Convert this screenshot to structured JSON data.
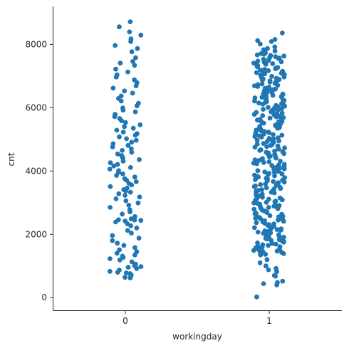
{
  "chart_data": {
    "type": "scatter",
    "title": "",
    "xlabel": "workingday",
    "ylabel": "cnt",
    "categories": [
      "0",
      "1"
    ],
    "ylim": [
      -400,
      9200
    ],
    "yticks": [
      0,
      2000,
      4000,
      6000,
      8000
    ],
    "grid": false,
    "color": "#1f77b4",
    "series": [
      {
        "category": "0",
        "values": [
          8714,
          8555,
          8395,
          8294,
          8173,
          8090,
          7965,
          7870,
          7767,
          7580,
          7460,
          7410,
          7338,
          7216,
          7130,
          7040,
          6970,
          6880,
          6790,
          6690,
          6620,
          6530,
          6460,
          6370,
          6290,
          6210,
          6140,
          6060,
          5990,
          5920,
          5870,
          5790,
          5720,
          5660,
          5590,
          5530,
          5460,
          5400,
          5350,
          5290,
          5230,
          5180,
          5130,
          5080,
          5020,
          4970,
          4910,
          4860,
          4810,
          4760,
          4700,
          4650,
          4590,
          4540,
          4490,
          4450,
          4410,
          4360,
          4310,
          4260,
          4210,
          4160,
          4110,
          4060,
          4010,
          3960,
          3910,
          3860,
          3810,
          3760,
          3710,
          3660,
          3610,
          3560,
          3510,
          3460,
          3410,
          3370,
          3330,
          3280,
          3230,
          3180,
          3120,
          3060,
          2990,
          2920,
          2850,
          2780,
          2710,
          2640,
          2560,
          2490,
          2460,
          2450,
          2440,
          2420,
          2390,
          2330,
          2270,
          2200,
          2120,
          2040,
          1960,
          1880,
          1800,
          1720,
          1650,
          1580,
          1510,
          1450,
          1400,
          1350,
          1310,
          1270,
          1230,
          1190,
          1130,
          1060,
          1010,
          980,
          960,
          920,
          870,
          830,
          800,
          780,
          760,
          720,
          680,
          640,
          620
        ]
      },
      {
        "category": "1",
        "values": [
          8362,
          8156,
          8120,
          8090,
          8010,
          7920,
          7870,
          7830,
          7790,
          7760,
          7730,
          7710,
          7690,
          7670,
          7650,
          7630,
          7610,
          7590,
          7570,
          7550,
          7530,
          7510,
          7490,
          7470,
          7450,
          7430,
          7410,
          7390,
          7370,
          7350,
          7330,
          7310,
          7290,
          7270,
          7250,
          7230,
          7210,
          7190,
          7170,
          7150,
          7130,
          7110,
          7090,
          7070,
          7050,
          7030,
          7010,
          6990,
          6970,
          6950,
          6930,
          6910,
          6890,
          6870,
          6850,
          6830,
          6810,
          6790,
          6770,
          6750,
          6730,
          6710,
          6690,
          6670,
          6650,
          6630,
          6610,
          6590,
          6570,
          6550,
          6530,
          6510,
          6490,
          6470,
          6450,
          6430,
          6410,
          6390,
          6370,
          6350,
          6330,
          6310,
          6290,
          6270,
          6250,
          6230,
          6210,
          6190,
          6170,
          6150,
          6130,
          6110,
          6090,
          6070,
          6050,
          6030,
          6010,
          5990,
          5970,
          5950,
          5930,
          5910,
          5890,
          5870,
          5850,
          5830,
          5810,
          5790,
          5770,
          5750,
          5730,
          5710,
          5690,
          5670,
          5650,
          5630,
          5610,
          5590,
          5570,
          5550,
          5530,
          5510,
          5490,
          5470,
          5450,
          5430,
          5410,
          5390,
          5370,
          5350,
          5330,
          5310,
          5290,
          5270,
          5250,
          5230,
          5210,
          5190,
          5170,
          5150,
          5130,
          5110,
          5090,
          5070,
          5050,
          5030,
          5010,
          4990,
          4970,
          4950,
          4930,
          4910,
          4890,
          4870,
          4850,
          4830,
          4810,
          4790,
          4770,
          4750,
          4730,
          4710,
          4690,
          4670,
          4650,
          4630,
          4610,
          4590,
          4570,
          4550,
          4530,
          4510,
          4490,
          4470,
          4450,
          4430,
          4410,
          4390,
          4370,
          4350,
          4330,
          4310,
          4290,
          4270,
          4250,
          4230,
          4210,
          4190,
          4170,
          4150,
          4130,
          4110,
          4090,
          4070,
          4050,
          4030,
          4010,
          3990,
          3970,
          3950,
          3930,
          3910,
          3890,
          3870,
          3850,
          3830,
          3810,
          3790,
          3770,
          3750,
          3730,
          3710,
          3690,
          3670,
          3650,
          3630,
          3610,
          3590,
          3570,
          3550,
          3530,
          3510,
          3490,
          3470,
          3450,
          3430,
          3410,
          3390,
          3370,
          3350,
          3330,
          3310,
          3290,
          3270,
          3250,
          3230,
          3210,
          3190,
          3170,
          3150,
          3130,
          3110,
          3090,
          3070,
          3050,
          3030,
          3010,
          2990,
          2970,
          2950,
          2930,
          2910,
          2890,
          2870,
          2850,
          2830,
          2810,
          2790,
          2770,
          2750,
          2730,
          2710,
          2690,
          2670,
          2650,
          2630,
          2610,
          2590,
          2570,
          2550,
          2530,
          2510,
          2490,
          2470,
          2450,
          2430,
          2410,
          2390,
          2370,
          2350,
          2330,
          2310,
          2290,
          2270,
          2250,
          2230,
          2210,
          2190,
          2170,
          2150,
          2130,
          2110,
          2090,
          2070,
          2050,
          2030,
          2010,
          1990,
          1970,
          1950,
          1930,
          1910,
          1890,
          1870,
          1850,
          1830,
          1810,
          1790,
          1770,
          1750,
          1730,
          1710,
          1690,
          1670,
          1650,
          1630,
          1610,
          1590,
          1570,
          1550,
          1530,
          1510,
          1490,
          1470,
          1450,
          1430,
          1410,
          1390,
          1370,
          1350,
          1200,
          1100,
          1000,
          920,
          880,
          820,
          700,
          680,
          520,
          480,
          440,
          400,
          22
        ]
      }
    ]
  }
}
